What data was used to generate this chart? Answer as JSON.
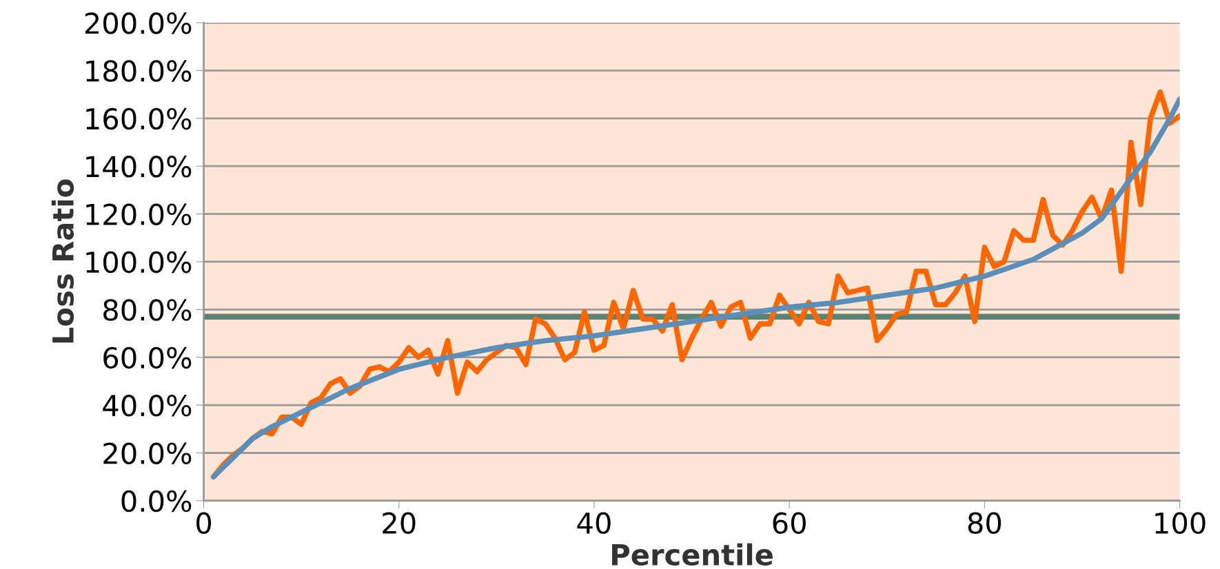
{
  "chart_data": {
    "type": "line",
    "xlabel": "Percentile",
    "ylabel": "Loss Ratio",
    "xlim": [
      0,
      100
    ],
    "xticks": [
      0,
      20,
      40,
      60,
      80,
      100
    ],
    "ylim": [
      0,
      200
    ],
    "yticks": [
      {
        "value": 0,
        "label": "0.0%"
      },
      {
        "value": 20,
        "label": "20.0%"
      },
      {
        "value": 40,
        "label": "40.0%"
      },
      {
        "value": 60,
        "label": "60.0%"
      },
      {
        "value": 80,
        "label": "80.0%"
      },
      {
        "value": 100,
        "label": "100.0%"
      },
      {
        "value": 120,
        "label": "120.0%"
      },
      {
        "value": 140,
        "label": "140.0%"
      },
      {
        "value": 160,
        "label": "160.0%"
      },
      {
        "value": 180,
        "label": "180.0%"
      },
      {
        "value": 200,
        "label": "200.0%"
      }
    ],
    "grid": "y",
    "legend": false,
    "marker": "none",
    "line_style": "solid",
    "ref_lines": [
      {
        "axis": "y",
        "value": 77,
        "color": "#5a8275",
        "line_style": "solid"
      }
    ],
    "series": [
      {
        "color": "#ff6600",
        "x": [
          1,
          2,
          3,
          4,
          5,
          6,
          7,
          8,
          9,
          10,
          11,
          12,
          13,
          14,
          15,
          16,
          17,
          18,
          19,
          20,
          21,
          22,
          23,
          24,
          25,
          26,
          27,
          28,
          29,
          30,
          31,
          32,
          33,
          34,
          35,
          36,
          37,
          38,
          39,
          40,
          41,
          42,
          43,
          44,
          45,
          46,
          47,
          48,
          49,
          50,
          51,
          52,
          53,
          54,
          55,
          56,
          57,
          58,
          59,
          60,
          61,
          62,
          63,
          64,
          65,
          66,
          67,
          68,
          69,
          70,
          71,
          72,
          73,
          74,
          75,
          76,
          77,
          78,
          79,
          80,
          81,
          82,
          83,
          84,
          85,
          86,
          87,
          88,
          89,
          90,
          91,
          92,
          93,
          94,
          95,
          96,
          97,
          98,
          99,
          100
        ],
        "values": [
          10,
          15,
          19,
          22,
          26,
          29,
          28,
          35,
          35,
          32,
          41,
          43,
          49,
          51,
          45,
          48,
          55,
          56,
          54,
          58,
          64,
          60,
          63,
          53,
          67,
          45,
          58,
          54,
          59,
          62,
          65,
          64,
          57,
          76,
          74,
          68,
          59,
          62,
          79,
          63,
          65,
          83,
          72,
          88,
          76,
          76,
          71,
          82,
          59,
          68,
          76,
          83,
          73,
          81,
          83,
          68,
          74,
          74,
          86,
          80,
          74,
          83,
          75,
          74,
          94,
          87,
          88,
          89,
          67,
          72,
          78,
          79,
          96,
          96,
          82,
          82,
          87,
          94,
          75,
          106,
          98,
          100,
          113,
          109,
          109,
          126,
          111,
          107,
          113,
          121,
          127,
          118,
          130,
          96,
          150,
          124,
          160,
          171,
          158,
          161
        ]
      },
      {
        "color": "#5b8fba",
        "x": [
          1,
          2,
          3,
          5,
          7,
          10,
          15,
          20,
          25,
          30,
          35,
          40,
          45,
          50,
          55,
          60,
          65,
          70,
          75,
          80,
          85,
          90,
          92,
          95,
          97,
          98,
          99,
          100
        ],
        "values": [
          10,
          14,
          18,
          26,
          31,
          37,
          47,
          55,
          60,
          64,
          67,
          69,
          72,
          75,
          78,
          81,
          83,
          86,
          89,
          94,
          101,
          112,
          118,
          135,
          146,
          153,
          160,
          168
        ]
      }
    ]
  }
}
